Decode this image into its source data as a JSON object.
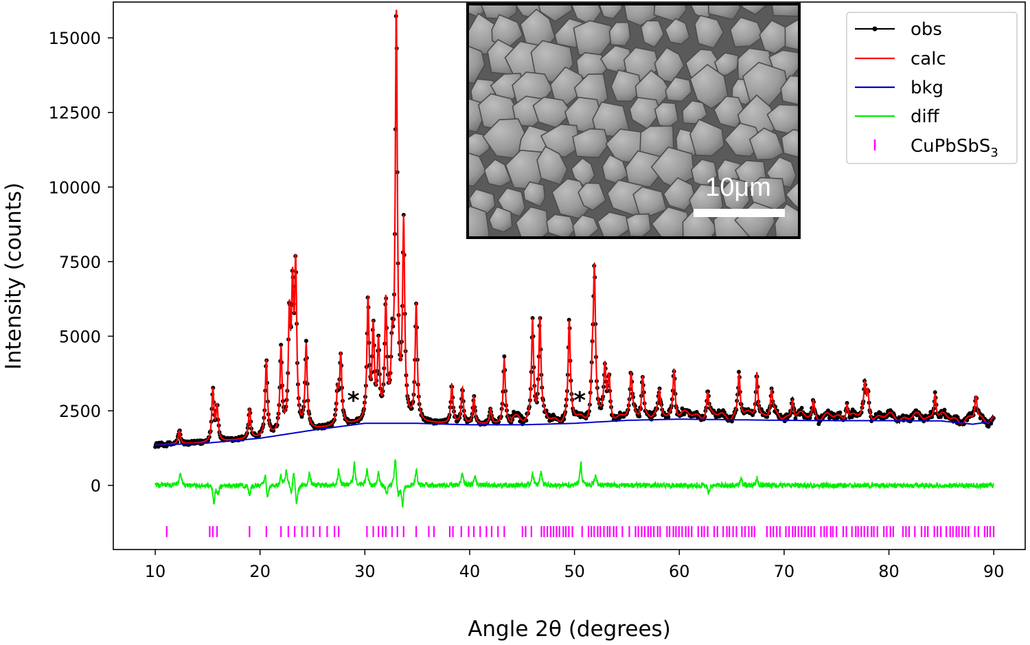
{
  "chart_data": {
    "type": "line",
    "title": "",
    "xlabel": "Angle 2θ (degrees)",
    "ylabel": "Intensity (counts)",
    "xlim": [
      6,
      93
    ],
    "ylim": [
      -2150,
      16200
    ],
    "xticks": [
      10,
      20,
      30,
      40,
      50,
      60,
      70,
      80,
      90
    ],
    "yticks": [
      0,
      2500,
      5000,
      7500,
      10000,
      12500,
      15000
    ],
    "grid": false,
    "legend_position": "top-right",
    "legend": {
      "obs": "obs",
      "calc": "calc",
      "bkg": "bkg",
      "diff": "diff",
      "phase_main": "CuPbSbS",
      "phase_sub": "3"
    },
    "series": [
      {
        "name": "obs",
        "color": "#000000",
        "marker": "dot"
      },
      {
        "name": "calc",
        "color": "#ff0000"
      },
      {
        "name": "bkg",
        "color": "#0000cc",
        "x": [
          10,
          15,
          20,
          25,
          30,
          35,
          40,
          45,
          50,
          55,
          60,
          65,
          70,
          75,
          80,
          85,
          88,
          90
        ],
        "y": [
          1350,
          1420,
          1580,
          1850,
          2080,
          2080,
          2030,
          2030,
          2080,
          2180,
          2220,
          2200,
          2180,
          2170,
          2170,
          2160,
          2050,
          2150
        ]
      },
      {
        "name": "diff",
        "color": "#00ee00"
      }
    ],
    "peaks": [
      [
        12.3,
        450
      ],
      [
        15.5,
        1750
      ],
      [
        15.9,
        1150
      ],
      [
        19.0,
        1000
      ],
      [
        20.6,
        2550
      ],
      [
        22.0,
        2800
      ],
      [
        22.8,
        3600
      ],
      [
        23.1,
        4300
      ],
      [
        23.4,
        5200
      ],
      [
        24.4,
        2800
      ],
      [
        27.4,
        1100
      ],
      [
        27.7,
        2300
      ],
      [
        30.3,
        4000
      ],
      [
        30.8,
        3000
      ],
      [
        31.3,
        2500
      ],
      [
        32.0,
        3900
      ],
      [
        32.6,
        2000
      ],
      [
        33.0,
        13500
      ],
      [
        33.7,
        6500
      ],
      [
        34.9,
        3900
      ],
      [
        38.3,
        1300
      ],
      [
        39.3,
        1200
      ],
      [
        40.4,
        900
      ],
      [
        42.0,
        500
      ],
      [
        43.3,
        2200
      ],
      [
        46.0,
        3400
      ],
      [
        46.7,
        3300
      ],
      [
        49.5,
        3200
      ],
      [
        51.7,
        1300
      ],
      [
        51.9,
        4800
      ],
      [
        52.9,
        1600
      ],
      [
        53.3,
        1300
      ],
      [
        55.4,
        1300
      ],
      [
        56.5,
        1400
      ],
      [
        58.1,
        700
      ],
      [
        59.5,
        1600
      ],
      [
        62.7,
        800
      ],
      [
        65.7,
        1400
      ],
      [
        67.4,
        1600
      ],
      [
        68.8,
        800
      ],
      [
        70.8,
        650
      ],
      [
        72.8,
        550
      ],
      [
        76.0,
        550
      ],
      [
        77.7,
        1000
      ],
      [
        78.0,
        800
      ],
      [
        84.4,
        900
      ],
      [
        88.3,
        800
      ]
    ],
    "diff_peaks": [
      [
        12.4,
        450
      ],
      [
        15.6,
        -600
      ],
      [
        16.0,
        -300
      ],
      [
        19.0,
        -350
      ],
      [
        20.5,
        450
      ],
      [
        20.7,
        -500
      ],
      [
        22.0,
        300
      ],
      [
        22.5,
        500
      ],
      [
        23.0,
        -400
      ],
      [
        23.2,
        600
      ],
      [
        23.5,
        -700
      ],
      [
        24.7,
        450
      ],
      [
        27.5,
        500
      ],
      [
        29.0,
        750
      ],
      [
        30.2,
        500
      ],
      [
        31.3,
        450
      ],
      [
        32.1,
        -350
      ],
      [
        32.9,
        1000
      ],
      [
        33.2,
        -400
      ],
      [
        33.6,
        -650
      ],
      [
        34.9,
        550
      ],
      [
        39.3,
        450
      ],
      [
        40.5,
        300
      ],
      [
        46.0,
        400
      ],
      [
        46.8,
        500
      ],
      [
        50.6,
        750
      ],
      [
        52.0,
        350
      ],
      [
        62.8,
        -250
      ],
      [
        65.9,
        300
      ],
      [
        67.4,
        250
      ]
    ],
    "unlabeled_peaks": [
      [
        29.0,
        750
      ],
      [
        50.6,
        700
      ]
    ],
    "reflections": {
      "name": "CuPbSbS3",
      "color": "#ff00ff",
      "y_level": -1550,
      "explicit": [
        11.1,
        15.2,
        15.5,
        15.9,
        19.0,
        20.6,
        22.0,
        22.7,
        23.3,
        24.0,
        24.5,
        25.1,
        25.7,
        26.4,
        27.1,
        27.5,
        30.2,
        30.8,
        31.3,
        31.7,
        32.0,
        32.6,
        33.1,
        33.7,
        34.9,
        36.1,
        36.6,
        38.1,
        38.4,
        39.2,
        39.9,
        40.4,
        41.0,
        41.6,
        42.1,
        42.7,
        43.3
      ],
      "dense_start": 45.0,
      "dense_end": 90.0,
      "dense_step": 0.3,
      "dense_seed": 7
    },
    "annotations": [
      {
        "text": "*",
        "x": 28.9,
        "y": 2900
      },
      {
        "text": "*",
        "x": 50.5,
        "y": 2900
      }
    ]
  },
  "inset": {
    "kind": "SEM micrograph",
    "scale_bar_label": "10μm"
  }
}
